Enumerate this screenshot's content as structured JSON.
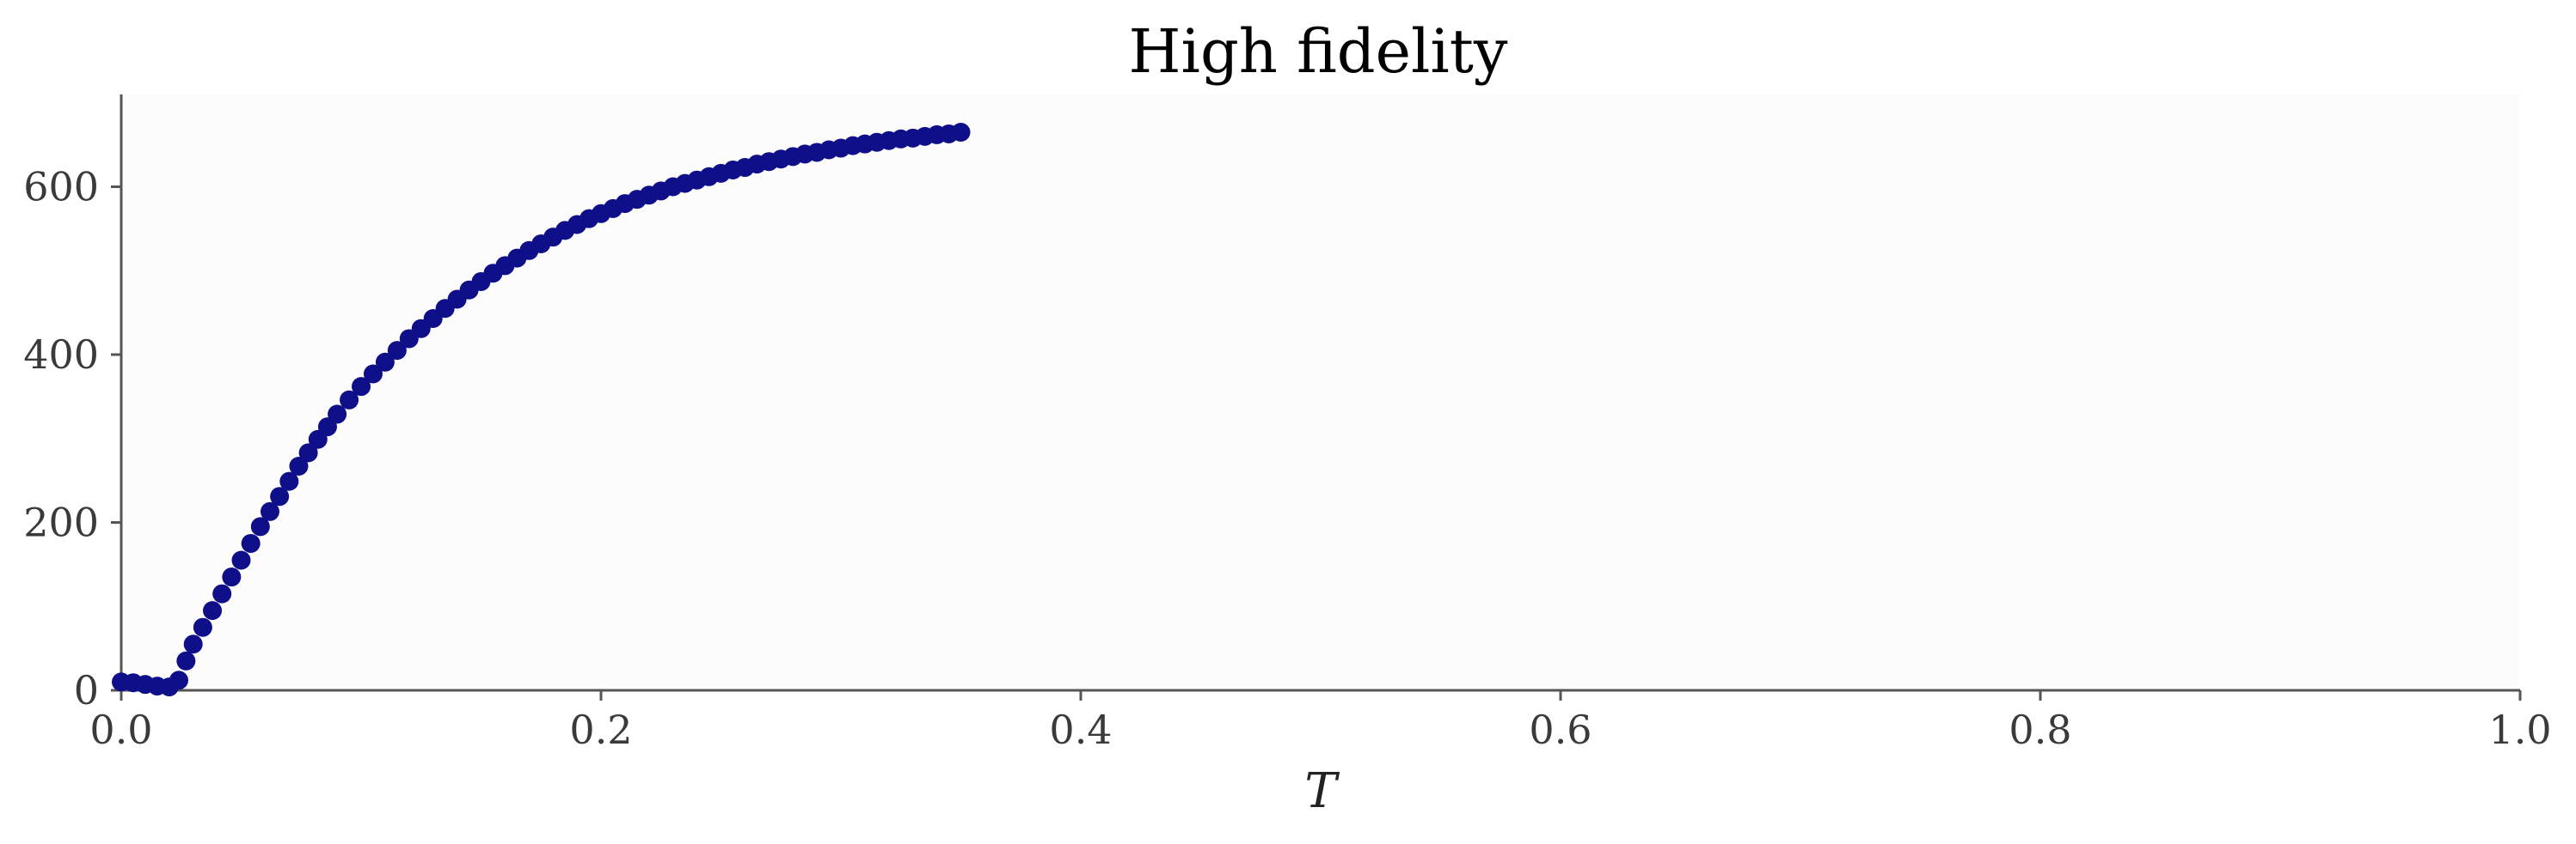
{
  "chart_data": {
    "type": "scatter",
    "title": "High fidelity",
    "xlabel": "T",
    "ylabel": "",
    "xlim": [
      0.0,
      1.0
    ],
    "ylim": [
      0,
      710
    ],
    "xticks": [
      "0.0",
      "0.2",
      "0.4",
      "0.6",
      "0.8",
      "1.0"
    ],
    "yticks": [
      "0",
      "200",
      "400",
      "600"
    ],
    "grid": false,
    "legend": "none",
    "colors": {
      "marker": "#0f0f8a",
      "axes": "#555555",
      "plot_background": "#fcfcfd"
    },
    "series": [
      {
        "x": [
          0.0,
          0.005,
          0.01,
          0.015,
          0.02,
          0.024,
          0.027,
          0.03,
          0.034,
          0.038,
          0.042,
          0.046,
          0.05,
          0.054,
          0.058,
          0.062,
          0.066,
          0.07,
          0.074,
          0.078,
          0.082,
          0.086,
          0.09,
          0.095,
          0.1,
          0.105,
          0.11,
          0.115,
          0.12,
          0.125,
          0.13,
          0.135,
          0.14,
          0.145,
          0.15,
          0.155,
          0.16,
          0.165,
          0.17,
          0.175,
          0.18,
          0.185,
          0.19,
          0.195,
          0.2,
          0.205,
          0.21,
          0.215,
          0.22,
          0.225,
          0.23,
          0.235,
          0.24,
          0.245,
          0.25,
          0.255,
          0.26,
          0.265,
          0.27,
          0.275,
          0.28,
          0.285,
          0.29,
          0.295,
          0.3,
          0.305,
          0.31,
          0.315,
          0.32,
          0.325,
          0.33,
          0.335,
          0.34,
          0.345,
          0.35
        ],
        "y": [
          10,
          9,
          7,
          5,
          4,
          12,
          35,
          55,
          75,
          95,
          115,
          135,
          155,
          175,
          195,
          213,
          231,
          249,
          267,
          283,
          299,
          314,
          329,
          346,
          362,
          377,
          391,
          405,
          419,
          431,
          443,
          455,
          466,
          477,
          487,
          497,
          506,
          515,
          524,
          532,
          540,
          548,
          555,
          562,
          568,
          574,
          580,
          585,
          590,
          595,
          600,
          604,
          608,
          612,
          616,
          620,
          623,
          627,
          630,
          633,
          636,
          639,
          641,
          644,
          646,
          649,
          651,
          653,
          655,
          657,
          658,
          660,
          662,
          663,
          665
        ]
      }
    ]
  }
}
